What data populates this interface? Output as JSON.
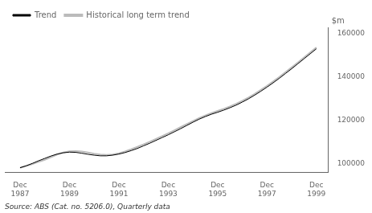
{
  "chart_data": {
    "type": "line",
    "ylabel": "$m",
    "annotations": [
      "Source: ABS (Cat. no. 5206.0), Quarterly data"
    ],
    "x": [
      1987.917,
      1988.167,
      1988.417,
      1988.667,
      1988.917,
      1989.167,
      1989.417,
      1989.667,
      1989.917,
      1990.167,
      1990.417,
      1990.667,
      1990.917,
      1991.167,
      1991.417,
      1991.667,
      1991.917,
      1992.167,
      1992.417,
      1992.667,
      1992.917,
      1993.167,
      1993.417,
      1993.667,
      1993.917,
      1994.167,
      1994.417,
      1994.667,
      1994.917,
      1995.167,
      1995.417,
      1995.667,
      1995.917,
      1996.167,
      1996.417,
      1996.667,
      1996.917,
      1997.167,
      1997.417,
      1997.667,
      1997.917,
      1998.167,
      1998.417,
      1998.667,
      1998.917,
      1999.167,
      1999.417,
      1999.667,
      1999.917
    ],
    "series": [
      {
        "name": "Trend",
        "color": "#000000",
        "values": [
          98200,
          99100,
          100200,
          101400,
          102500,
          103600,
          104500,
          105100,
          105400,
          105300,
          104900,
          104400,
          104000,
          103700,
          103700,
          104000,
          104500,
          105200,
          106100,
          107100,
          108300,
          109500,
          110800,
          112100,
          113400,
          114800,
          116200,
          117700,
          119200,
          120600,
          121800,
          122900,
          123800,
          124800,
          125900,
          127100,
          128500,
          130000,
          131700,
          133500,
          135400,
          137400,
          139500,
          141700,
          143900,
          146200,
          148500,
          150800,
          153100
        ]
      },
      {
        "name": "Historical long term trend",
        "color": "#bbbbbb",
        "values": [
          98200,
          99000,
          99900,
          100900,
          101900,
          103100,
          104300,
          105200,
          105800,
          105900,
          105700,
          105200,
          104700,
          104300,
          104100,
          104300,
          104900,
          105700,
          106700,
          107800,
          109000,
          110200,
          111500,
          112800,
          114100,
          115500,
          116900,
          118300,
          119700,
          121100,
          122300,
          123400,
          124400,
          125400,
          126500,
          127700,
          129100,
          130600,
          132300,
          134100,
          136000,
          138000,
          140100,
          142300,
          144500,
          146800,
          149100,
          151400,
          153700
        ]
      }
    ],
    "xlim": [
      1987.3,
      2000.4
    ],
    "xticks": [
      {
        "value": 1987.917,
        "label": "Dec\n1987"
      },
      {
        "value": 1989.917,
        "label": "Dec\n1989"
      },
      {
        "value": 1991.917,
        "label": "Dec\n1991"
      },
      {
        "value": 1993.917,
        "label": "Dec\n1993"
      },
      {
        "value": 1995.917,
        "label": "Dec\n1995"
      },
      {
        "value": 1997.917,
        "label": "Dec\n1997"
      },
      {
        "value": 1999.917,
        "label": "Dec\n1999"
      }
    ],
    "ylim": [
      96000,
      163000
    ],
    "yticks": [
      100000,
      120000,
      140000,
      160000
    ],
    "grid": false,
    "legend": "upper left"
  }
}
